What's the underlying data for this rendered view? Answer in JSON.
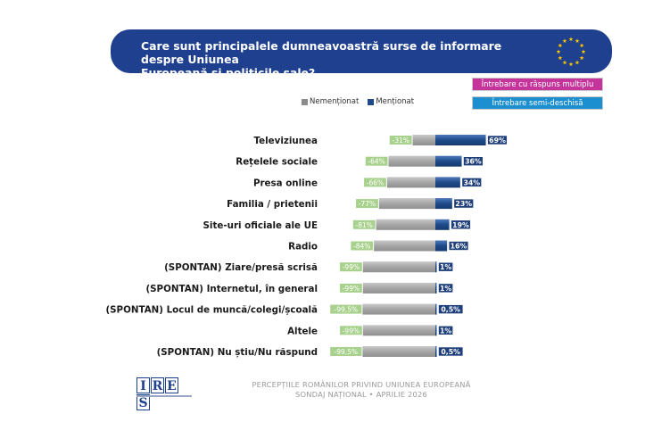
{
  "question": {
    "line1": "Care sunt principalele dumneavoastră surse de informare despre Uniunea",
    "line2": "Europeană și politicile sale?"
  },
  "badges": {
    "multi": "Întrebare cu răspuns multiplu",
    "semi": "Întrebare semi-deschisă"
  },
  "legend": {
    "not_mentioned": "Nemenționat",
    "mentioned": "Menționat"
  },
  "colors": {
    "banner": "#1f3f8f",
    "mentioned": "#1e4a8a",
    "not_mentioned": "#a6a6a6",
    "neg_label_bg": "#a9d18e"
  },
  "chart_data": {
    "type": "bar",
    "orientation": "horizontal-diverging",
    "categories": [
      "Televiziunea",
      "Rețelele sociale",
      "Presa online",
      "Familia / prietenii",
      "Site-uri oficiale ale UE",
      "Radio",
      "(SPONTAN) Ziare/presă scrisă",
      "(SPONTAN) Internetul, în general",
      "(SPONTAN) Locul de muncă/colegi/școală",
      "Altele",
      "(SPONTAN) Nu știu/Nu răspund"
    ],
    "series": [
      {
        "name": "Nemenționat",
        "values": [
          -31,
          -64,
          -66,
          -77,
          -81,
          -84,
          -99,
          -99,
          -99.5,
          -99,
          -99.5
        ],
        "labels": [
          "-31%",
          "-64%",
          "-66%",
          "-77%",
          "-81%",
          "-84%",
          "-99%",
          "-99%",
          "-99,5%",
          "-99%",
          "-99,5%"
        ]
      },
      {
        "name": "Menționat",
        "values": [
          69,
          36,
          34,
          23,
          19,
          16,
          1,
          1,
          0.5,
          1,
          0.5
        ],
        "labels": [
          "69%",
          "36%",
          "34%",
          "23%",
          "19%",
          "16%",
          "1%",
          "1%",
          "0,5%",
          "1%",
          "0,5%"
        ]
      }
    ],
    "legend_position": "top"
  },
  "logo": {
    "letters": [
      "I",
      "R",
      "E",
      "S"
    ]
  },
  "footer": {
    "line1": "PERCEPȚIILE ROMÂNILOR PRIVIND UNIUNEA EUROPEANĂ",
    "line2": "SONDAJ NAȚIONAL • APRILIE 2026"
  }
}
